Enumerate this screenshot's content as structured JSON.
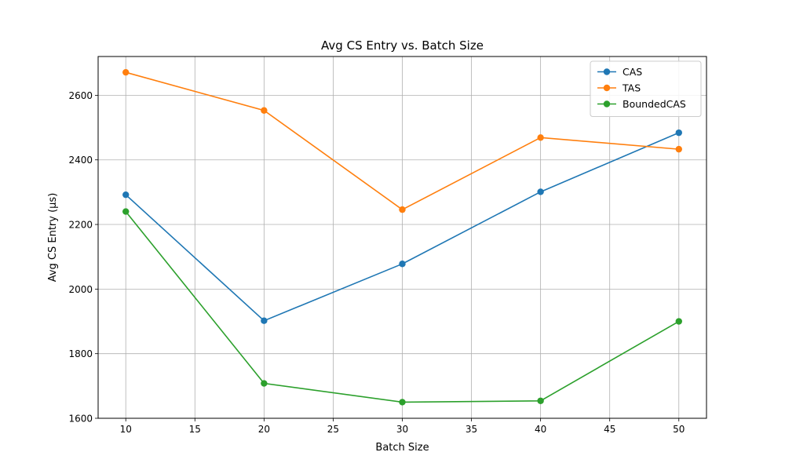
{
  "chart_data": {
    "type": "line",
    "title": "Avg CS Entry vs. Batch Size",
    "xlabel": "Batch Size",
    "ylabel": "Avg CS Entry (μs)",
    "x": [
      10,
      20,
      30,
      40,
      50
    ],
    "xlim": [
      8,
      52
    ],
    "ylim": [
      1600,
      2720
    ],
    "xticks": [
      10,
      15,
      20,
      25,
      30,
      35,
      40,
      45,
      50
    ],
    "yticks": [
      1600,
      1800,
      2000,
      2200,
      2400,
      2600
    ],
    "grid": true,
    "legend_position": "top-right",
    "series": [
      {
        "name": "CAS",
        "color": "#1f77b4",
        "marker": "circle",
        "values": [
          2292,
          1902,
          2078,
          2301,
          2484
        ]
      },
      {
        "name": "TAS",
        "color": "#ff7f0e",
        "marker": "circle",
        "values": [
          2671,
          2553,
          2246,
          2469,
          2433
        ]
      },
      {
        "name": "BoundedCAS",
        "color": "#2ca02c",
        "marker": "circle",
        "values": [
          2240,
          1708,
          1650,
          1654,
          1900
        ]
      }
    ]
  }
}
